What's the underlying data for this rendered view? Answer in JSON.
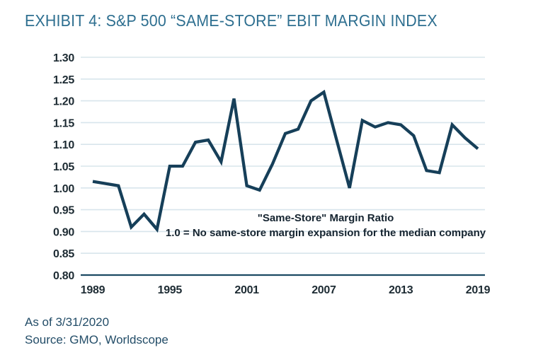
{
  "header": {
    "title": "EXHIBIT 4: S&P 500 “SAME-STORE” EBIT MARGIN INDEX"
  },
  "footer": {
    "as_of": "As of 3/31/2020",
    "source": "Source: GMO, Worldscope"
  },
  "chart_data": {
    "type": "line",
    "title": "S&P 500 \"Same-Store\" EBIT Margin Index",
    "series_name": "\"Same-Store\" Margin Ratio",
    "x": [
      1989,
      1990,
      1991,
      1992,
      1993,
      1994,
      1995,
      1996,
      1997,
      1998,
      1999,
      2000,
      2001,
      2002,
      2003,
      2004,
      2005,
      2006,
      2007,
      2008,
      2009,
      2010,
      2011,
      2012,
      2013,
      2014,
      2015,
      2016,
      2017,
      2018,
      2019
    ],
    "values": [
      1.015,
      1.01,
      1.005,
      0.91,
      0.94,
      0.905,
      1.05,
      1.05,
      1.105,
      1.11,
      1.06,
      1.205,
      1.005,
      0.995,
      1.055,
      1.125,
      1.135,
      1.2,
      1.22,
      1.11,
      1.0,
      1.155,
      1.14,
      1.15,
      1.145,
      1.12,
      1.04,
      1.035,
      1.145,
      1.115,
      1.09
    ],
    "x_tick_labels": [
      "1989",
      "1995",
      "2001",
      "2007",
      "2013",
      "2019"
    ],
    "y_ticks": [
      0.8,
      0.85,
      0.9,
      0.95,
      1.0,
      1.05,
      1.1,
      1.15,
      1.2,
      1.25,
      1.3
    ],
    "ylim": [
      0.8,
      1.3
    ],
    "xlim": [
      1989,
      2019
    ],
    "xlabel": "",
    "ylabel": "",
    "grid": "horizontal",
    "legend": "none",
    "annotation": {
      "line1": "\"Same-Store\" Margin Ratio",
      "line2": "1.0 = No same-store margin expansion for the median company"
    },
    "colors": {
      "line": "#163f59",
      "grid": "#d8e5ec",
      "axis": "#1c4a63",
      "tick_text": "#1d2b33",
      "title_text": "#2e6f90",
      "footnote_text": "#234d68",
      "annotation_text": "#152430"
    }
  }
}
